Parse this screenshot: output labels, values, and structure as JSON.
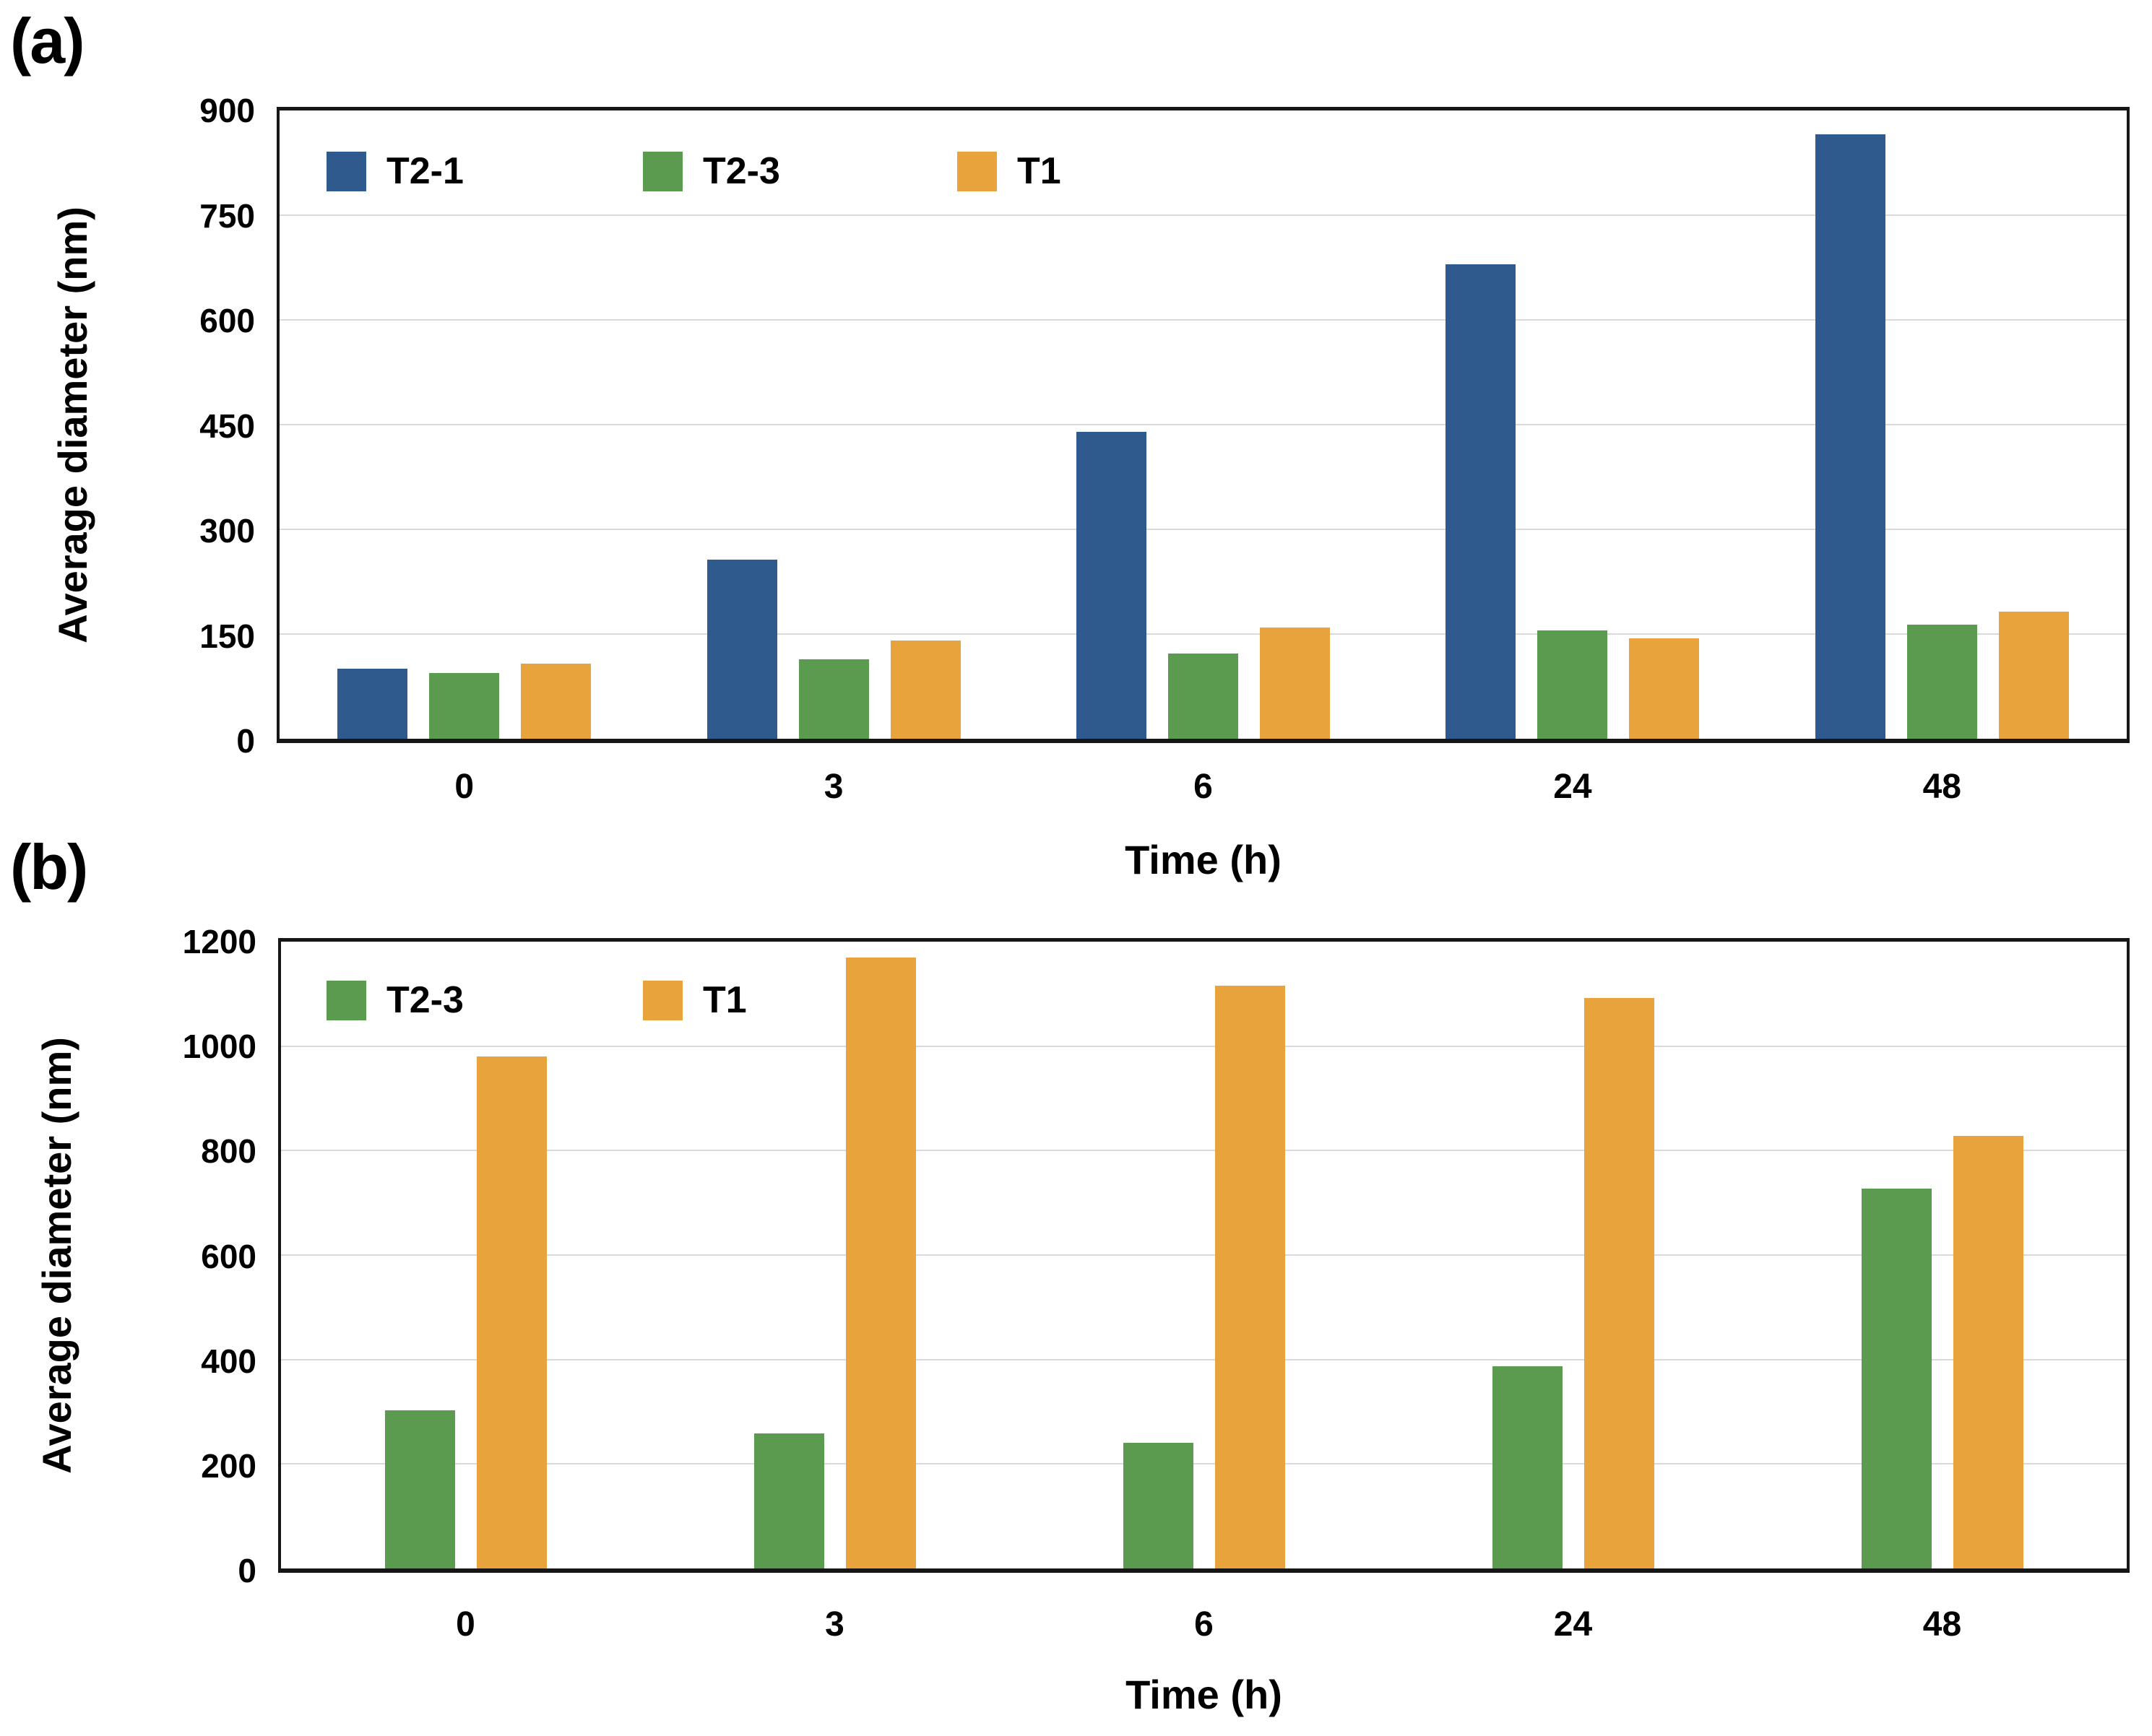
{
  "figure": {
    "title": "",
    "panels": [
      "(a)",
      "(b)"
    ]
  },
  "chart_data": [
    {
      "type": "bar",
      "panel_label": "(a)",
      "title": "",
      "categories": [
        "0",
        "3",
        "6",
        "24",
        "48"
      ],
      "xlabel": "Time (h)",
      "ylabel": "Average diameter (nm)",
      "ylim": [
        0,
        900
      ],
      "ytick_step": 150,
      "yticks": [
        0,
        150,
        300,
        450,
        600,
        750,
        900
      ],
      "grid": true,
      "legend_position": "inside-top-left",
      "series": [
        {
          "name": "T2-1",
          "color": "#2F5A8D",
          "values": [
            100,
            257,
            440,
            680,
            866
          ]
        },
        {
          "name": "T2-3",
          "color": "#5B9B50",
          "values": [
            94,
            114,
            122,
            155,
            163
          ]
        },
        {
          "name": "T1",
          "color": "#E8A33D",
          "values": [
            108,
            141,
            159,
            144,
            182
          ]
        }
      ]
    },
    {
      "type": "bar",
      "panel_label": "(b)",
      "title": "",
      "categories": [
        "0",
        "3",
        "6",
        "24",
        "48"
      ],
      "xlabel": "Time (h)",
      "ylabel": "Average diameter (nm)",
      "ylim": [
        0,
        1200
      ],
      "ytick_step": 200,
      "yticks": [
        0,
        200,
        400,
        600,
        800,
        1000,
        1200
      ],
      "grid": true,
      "legend_position": "inside-top-left",
      "series": [
        {
          "name": "T2-3",
          "color": "#5B9B50",
          "values": [
            303,
            258,
            240,
            387,
            727
          ]
        },
        {
          "name": "T1",
          "color": "#E8A33D",
          "values": [
            980,
            1170,
            1115,
            1092,
            828
          ]
        }
      ]
    }
  ]
}
